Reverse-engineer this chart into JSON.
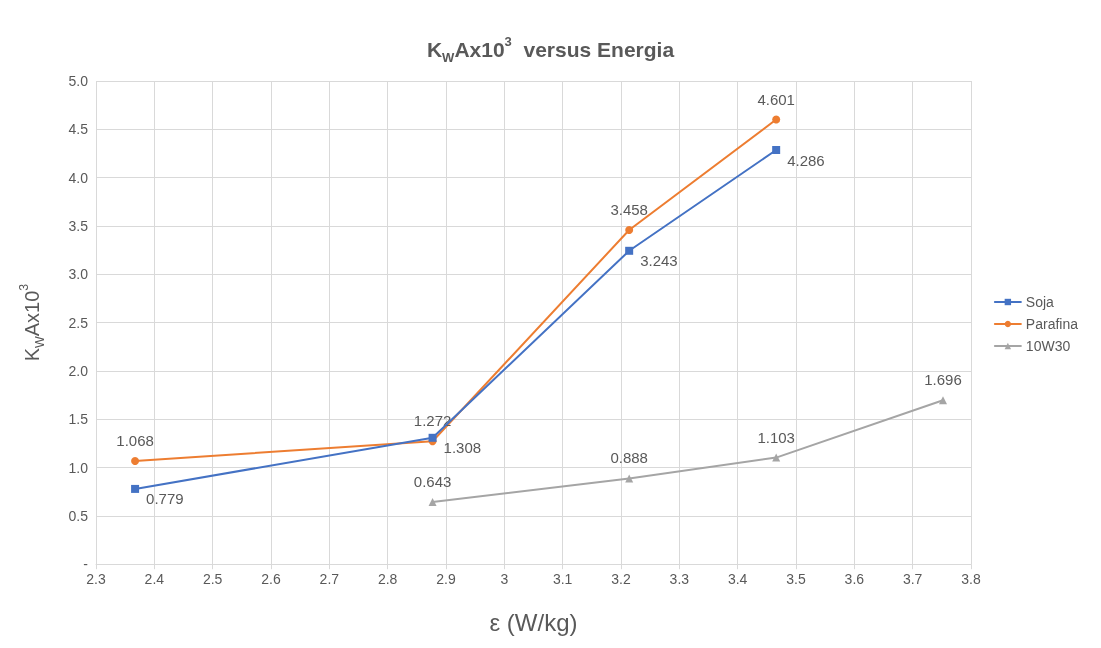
{
  "chart_data": {
    "type": "line",
    "title": "K$_{W}$Ax10$^{3}$  versus Energia",
    "xlabel": "ε (W/kg)",
    "ylabel": "K$_{W}$Ax10$^{3}$",
    "series": [
      {
        "name": "Soja",
        "color": "#4472c4",
        "marker": "square",
        "x": [
          2.367,
          2.877,
          3.214,
          3.466
        ],
        "values": [
          0.779,
          1.308,
          3.243,
          4.286
        ]
      },
      {
        "name": "Parafina",
        "color": "#ed7d31",
        "marker": "circle",
        "x": [
          2.367,
          2.877,
          3.214,
          3.466
        ],
        "values": [
          1.068,
          1.272,
          3.458,
          4.601
        ]
      },
      {
        "name": "10W30",
        "color": "#a5a5a5",
        "marker": "triangle",
        "x": [
          2.877,
          3.214,
          3.466,
          3.752
        ],
        "values": [
          0.643,
          0.888,
          1.103,
          1.696
        ]
      }
    ],
    "xlim": [
      2.3,
      3.8
    ],
    "xticks": [
      2.3,
      2.4,
      2.5,
      2.6,
      2.7,
      2.8,
      2.9,
      3,
      3.1,
      3.2,
      3.3,
      3.4,
      3.5,
      3.6,
      3.7,
      3.8
    ],
    "ylim": [
      0,
      5
    ],
    "yticks": [
      {
        "value": 0,
        "label": "-"
      },
      {
        "value": 0.5,
        "label": "0.5"
      },
      {
        "value": 1,
        "label": "1.0"
      },
      {
        "value": 1.5,
        "label": "1.5"
      },
      {
        "value": 2,
        "label": "2.0"
      },
      {
        "value": 2.5,
        "label": "2.5"
      },
      {
        "value": 3,
        "label": "3.0"
      },
      {
        "value": 3.5,
        "label": "3.5"
      },
      {
        "value": 4,
        "label": "4.0"
      },
      {
        "value": 4.5,
        "label": "4.5"
      },
      {
        "value": 5,
        "label": "5.0"
      }
    ],
    "grid": true,
    "legend": "right",
    "data_labels": true,
    "line_style": "solid"
  }
}
